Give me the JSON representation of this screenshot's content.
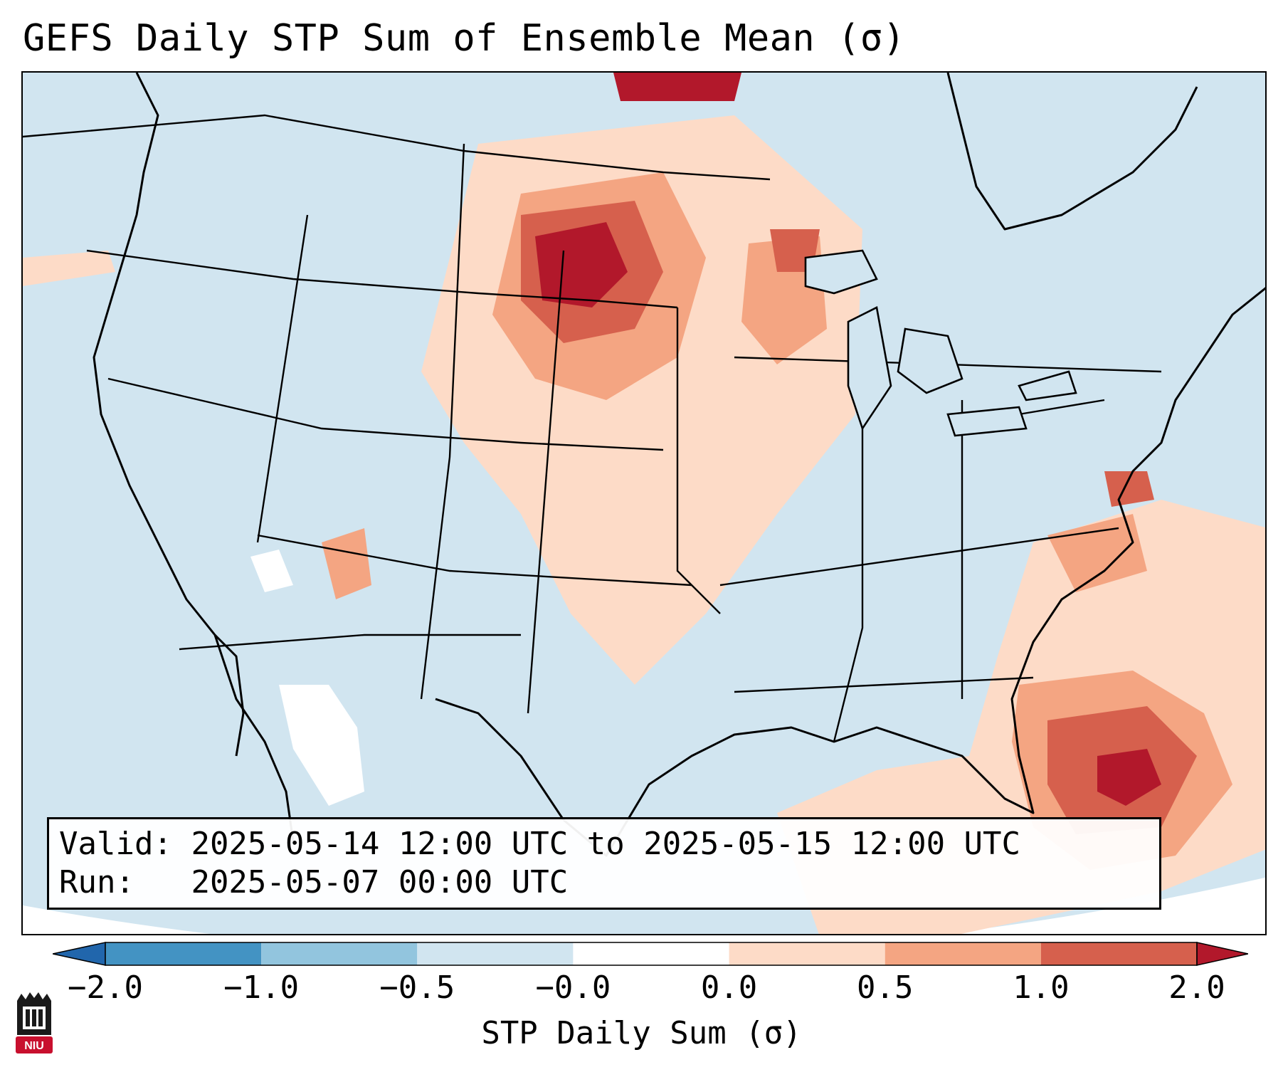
{
  "title": "GEFS Daily STP Sum of Ensemble Mean (σ)",
  "info": {
    "valid_label": "Valid:",
    "valid_value": "2025-05-14 12:00 UTC to 2025-05-15 12:00 UTC",
    "run_label": "Run:",
    "run_value": "2025-05-07 00:00 UTC"
  },
  "colorbar": {
    "label": "STP Daily Sum (σ)",
    "ticks": [
      "−2.0",
      "−1.0",
      "−0.5",
      "−0.0",
      "0.0",
      "0.5",
      "1.0",
      "2.0"
    ],
    "colors": [
      "#2166ac",
      "#4393c3",
      "#92c5de",
      "#d1e5f0",
      "#ffffff",
      "#fddbc7",
      "#f4a582",
      "#d6604d",
      "#b2182b"
    ]
  },
  "map": {
    "region": "Contiguous United States",
    "background_color": "#d1e5f0",
    "features": [
      "coastlines",
      "country borders",
      "state borders"
    ],
    "anomaly_areas": [
      {
        "area": "North Dakota / southern Canada",
        "category": "≥ 2.0"
      },
      {
        "area": "South Dakota / Nebraska",
        "category": "1.0 to 2.0"
      },
      {
        "area": "Upper Midwest / Wisconsin",
        "category": "0.5 to 1.0"
      },
      {
        "area": "Florida / Bahamas / western Atlantic",
        "category": "≥ 2.0"
      },
      {
        "area": "Mid-Atlantic offshore",
        "category": "1.0 to 2.0"
      },
      {
        "area": "Arizona / northwest Mexico",
        "category": "−0.0 to 0.0"
      }
    ]
  },
  "logo": {
    "text": "NIU",
    "color": "#c8102e"
  }
}
